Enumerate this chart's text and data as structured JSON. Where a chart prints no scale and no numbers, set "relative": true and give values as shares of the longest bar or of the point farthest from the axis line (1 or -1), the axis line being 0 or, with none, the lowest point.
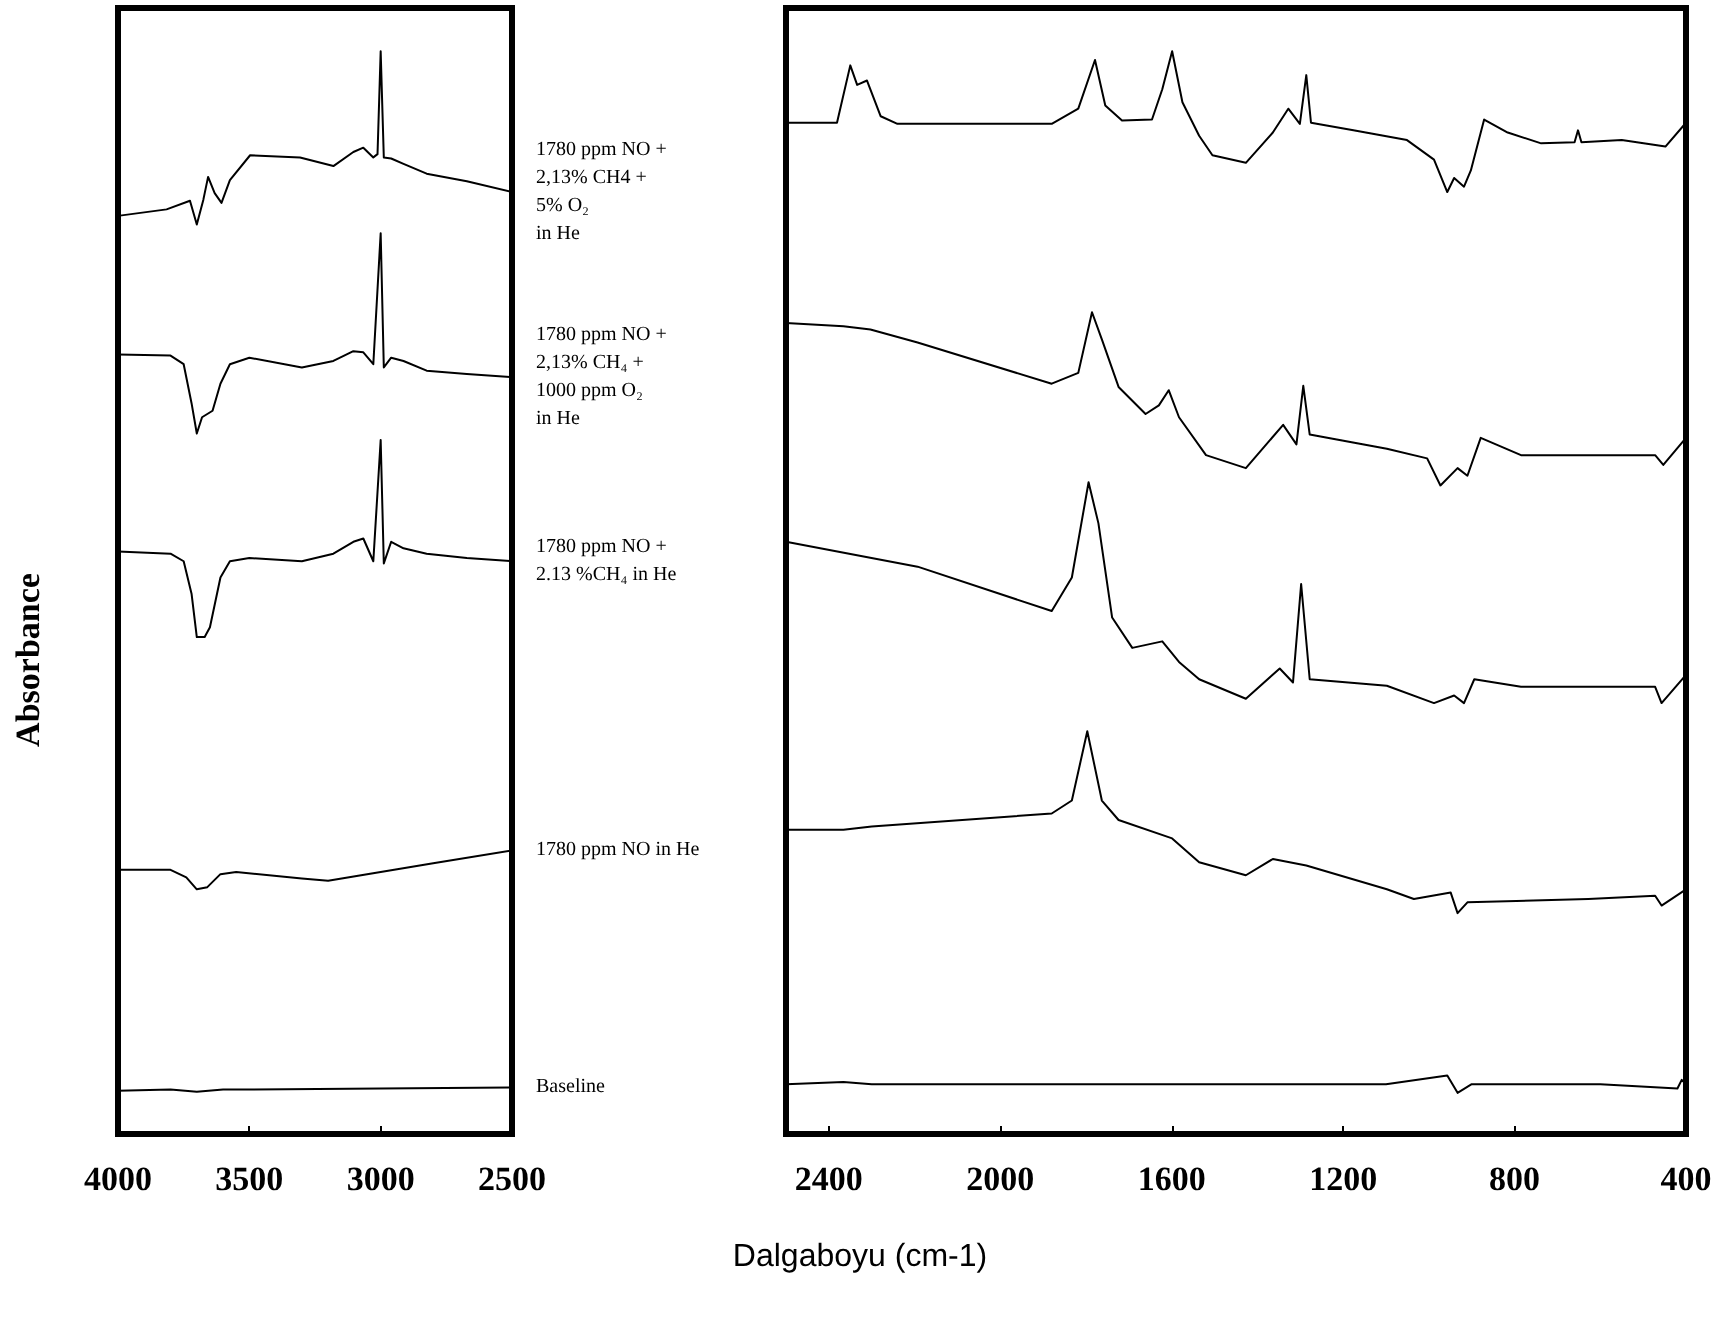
{
  "chart_data": [
    {
      "type": "line",
      "relative": true,
      "ylabel": "Absorbance",
      "xlim": [
        4000,
        2500
      ],
      "xticks": [
        4000,
        3500,
        3000,
        2500
      ],
      "marker": "none",
      "line_style": "solid",
      "grid": false,
      "legend": false,
      "annotations": [
        "Dalgaboyu (cm-1)"
      ],
      "x": [
        4000,
        3815,
        3726,
        3700,
        3675,
        3657,
        3632,
        3606,
        3574,
        3497,
        3307,
        3180,
        3104,
        3066,
        3028,
        3012,
        3000,
        2988,
        2960,
        2913,
        2825,
        2672,
        2500
      ],
      "series": [
        {
          "name": "1780 ppm NO +\n2,13% CH4 +\n5% O₂\nin He",
          "color": "#000000",
          "values": [
            0.848,
            0.854,
            0.862,
            0.84,
            0.863,
            0.884,
            0.869,
            0.86,
            0.881,
            0.904,
            0.902,
            0.894,
            0.907,
            0.911,
            0.902,
            0.905,
            1,
            0.902,
            0.901,
            0.896,
            0.887,
            0.88,
            0.87
          ]
        },
        {
          "name": "1780 ppm NO +\n2,13% CH₄ +\n1000 ppm O₂\nin He",
          "color": "#000000",
          "x": [
            4000,
            3800,
            3750,
            3720,
            3700,
            3680,
            3640,
            3610,
            3574,
            3500,
            3300,
            3180,
            3104,
            3066,
            3028,
            3000,
            2988,
            2960,
            2913,
            2825,
            2672,
            2500
          ],
          "values": [
            0.72,
            0.719,
            0.711,
            0.675,
            0.647,
            0.662,
            0.668,
            0.693,
            0.711,
            0.717,
            0.708,
            0.714,
            0.723,
            0.722,
            0.711,
            0.832,
            0.708,
            0.717,
            0.714,
            0.705,
            0.702,
            0.699
          ]
        },
        {
          "name": "1780 ppm NO +\n2.13 %CH₄ in He",
          "color": "#000000",
          "x": [
            4000,
            3800,
            3750,
            3720,
            3700,
            3670,
            3650,
            3610,
            3574,
            3500,
            3300,
            3180,
            3104,
            3066,
            3028,
            3000,
            2988,
            2960,
            2913,
            2825,
            2672,
            2500
          ],
          "values": [
            0.538,
            0.536,
            0.529,
            0.499,
            0.459,
            0.459,
            0.468,
            0.514,
            0.529,
            0.532,
            0.529,
            0.536,
            0.547,
            0.55,
            0.529,
            0.641,
            0.527,
            0.547,
            0.541,
            0.536,
            0.532,
            0.529
          ]
        },
        {
          "name": "1780 ppm NO in He",
          "color": "#000000",
          "x": [
            4000,
            3800,
            3740,
            3700,
            3660,
            3610,
            3550,
            3300,
            3200,
            3000,
            2800,
            2500
          ],
          "values": [
            0.244,
            0.244,
            0.237,
            0.226,
            0.228,
            0.24,
            0.242,
            0.236,
            0.234,
            0.242,
            0.25,
            0.262
          ]
        },
        {
          "name": "Baseline",
          "color": "#000000",
          "x": [
            4000,
            3800,
            3700,
            3600,
            3000,
            2500
          ],
          "values": [
            0.04,
            0.041,
            0.039,
            0.041,
            0.042,
            0.043
          ]
        }
      ]
    },
    {
      "type": "line",
      "relative": true,
      "xlim": [
        2500,
        400
      ],
      "xticks": [
        2400,
        2000,
        1600,
        1200,
        800,
        400
      ],
      "marker": "none",
      "line_style": "solid",
      "grid": false,
      "legend": false,
      "series": [
        {
          "color": "#000000",
          "x": [
            2500,
            2381,
            2350,
            2334,
            2311,
            2279,
            2240,
            1880,
            1818,
            1779,
            1755,
            1716,
            1646,
            1622,
            1599,
            1575,
            1536,
            1505,
            1427,
            1364,
            1328,
            1301,
            1286,
            1275,
            1176,
            1051,
            988,
            957,
            941,
            918,
            902,
            871,
            816,
            738,
            660,
            652,
            644,
            550,
            448,
            400
          ],
          "values": [
            0.934,
            0.934,
            0.987,
            0.969,
            0.973,
            0.94,
            0.933,
            0.933,
            0.947,
            0.992,
            0.95,
            0.936,
            0.937,
            0.965,
            1,
            0.953,
            0.922,
            0.904,
            0.897,
            0.925,
            0.947,
            0.933,
            0.978,
            0.934,
            0.927,
            0.918,
            0.9,
            0.87,
            0.883,
            0.875,
            0.89,
            0.937,
            0.925,
            0.915,
            0.916,
            0.927,
            0.916,
            0.918,
            0.912,
            0.934
          ]
        },
        {
          "color": "#000000",
          "x": [
            2500,
            2366,
            2303,
            2193,
            1880,
            1818,
            1786,
            1763,
            1724,
            1661,
            1630,
            1607,
            1583,
            1520,
            1427,
            1340,
            1309,
            1293,
            1278,
            1098,
            1004,
            973,
            933,
            910,
            879,
            785,
            472,
            453,
            400
          ],
          "values": [
            0.749,
            0.746,
            0.743,
            0.731,
            0.693,
            0.703,
            0.759,
            0.734,
            0.69,
            0.665,
            0.673,
            0.687,
            0.662,
            0.627,
            0.615,
            0.655,
            0.637,
            0.691,
            0.646,
            0.633,
            0.624,
            0.599,
            0.615,
            0.608,
            0.643,
            0.627,
            0.627,
            0.618,
            0.643
          ]
        },
        {
          "color": "#000000",
          "x": [
            2500,
            2193,
            1880,
            1833,
            1794,
            1771,
            1739,
            1692,
            1622,
            1583,
            1536,
            1427,
            1348,
            1317,
            1298,
            1278,
            1098,
            988,
            941,
            918,
            894,
            785,
            472,
            457,
            400
          ],
          "values": [
            0.547,
            0.524,
            0.483,
            0.514,
            0.602,
            0.564,
            0.477,
            0.449,
            0.455,
            0.436,
            0.42,
            0.402,
            0.43,
            0.417,
            0.508,
            0.42,
            0.414,
            0.398,
            0.405,
            0.398,
            0.42,
            0.413,
            0.413,
            0.398,
            0.424
          ]
        },
        {
          "color": "#000000",
          "x": [
            2500,
            2366,
            2300,
            1880,
            1833,
            1797,
            1763,
            1724,
            1599,
            1536,
            1427,
            1364,
            1286,
            1098,
            1035,
            949,
            933,
            910,
            628,
            472,
            457,
            400
          ],
          "values": [
            0.281,
            0.281,
            0.284,
            0.296,
            0.308,
            0.372,
            0.308,
            0.29,
            0.273,
            0.251,
            0.239,
            0.254,
            0.248,
            0.226,
            0.217,
            0.223,
            0.204,
            0.214,
            0.217,
            0.22,
            0.211,
            0.226
          ]
        },
        {
          "color": "#000000",
          "x": [
            2500,
            2366,
            2300,
            1100,
            957,
            933,
            900,
            600,
            420,
            410,
            400
          ],
          "values": [
            0.046,
            0.048,
            0.046,
            0.046,
            0.054,
            0.038,
            0.046,
            0.046,
            0.042,
            0.05,
            0.046
          ]
        }
      ]
    }
  ]
}
